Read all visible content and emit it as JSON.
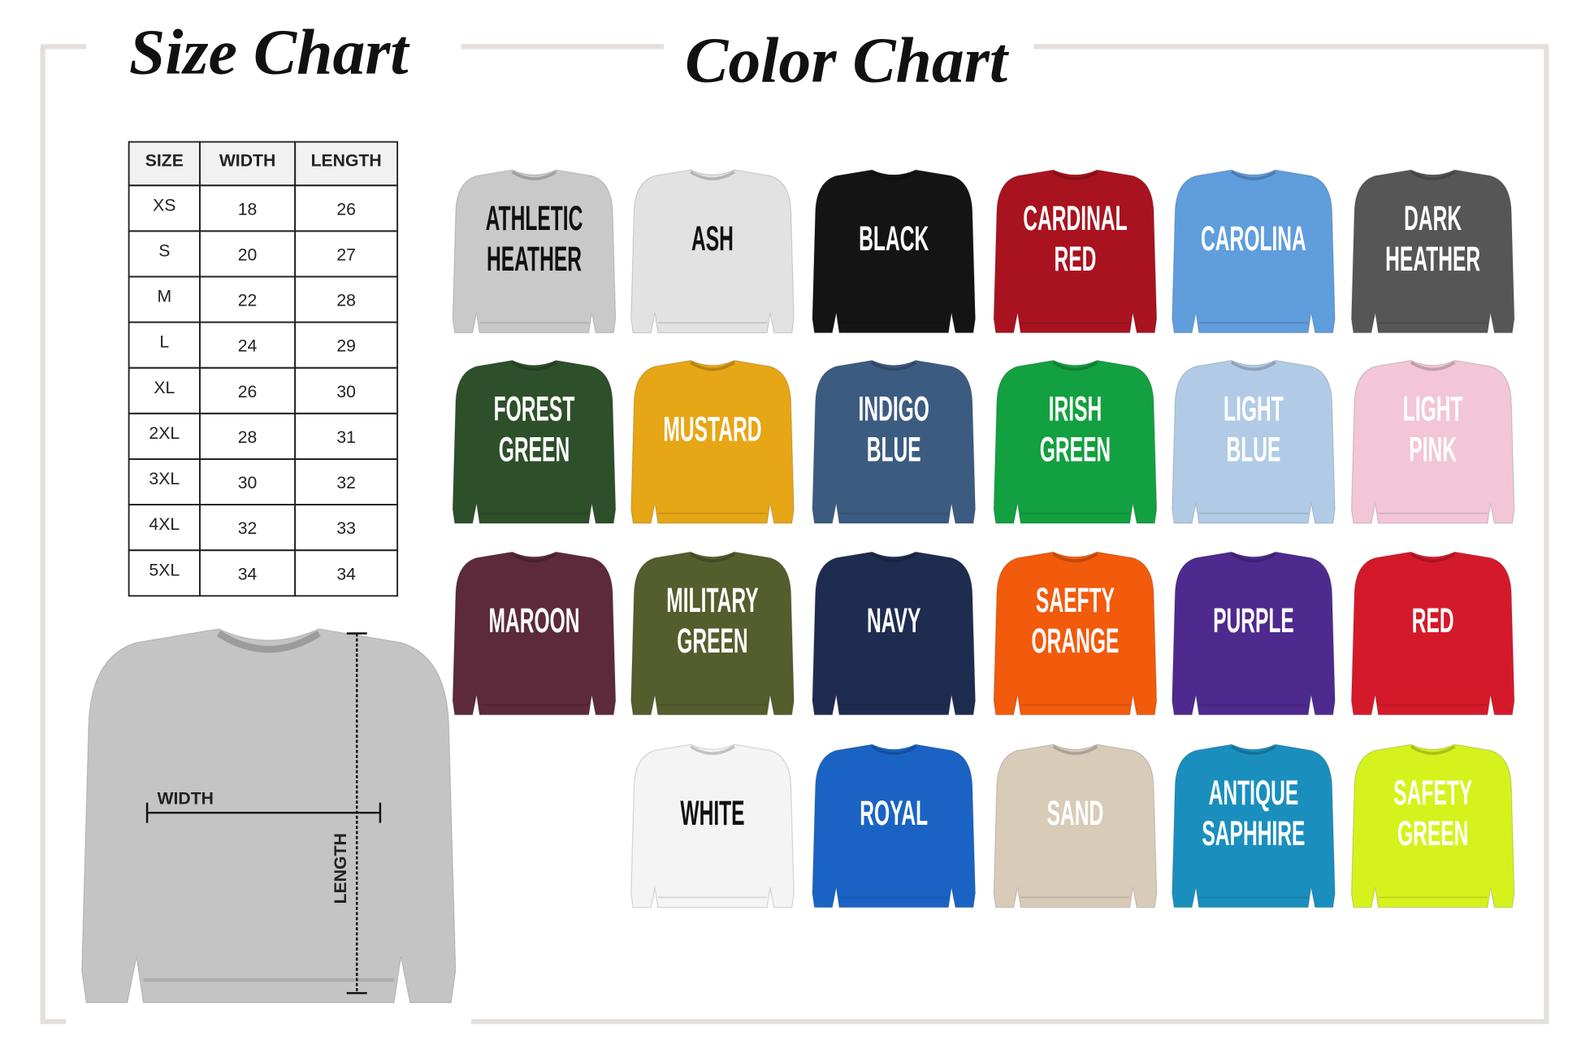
{
  "size_chart": {
    "title": "Size Chart",
    "table": {
      "header": [
        "SIZE",
        "WIDTH",
        "LENGTH"
      ],
      "rows": [
        [
          "XS",
          "18",
          "26"
        ],
        [
          "S",
          "20",
          "27"
        ],
        [
          "M",
          "22",
          "28"
        ],
        [
          "L",
          "24",
          "29"
        ],
        [
          "XL",
          "26",
          "30"
        ],
        [
          "2XL",
          "28",
          "31"
        ],
        [
          "3XL",
          "30",
          "32"
        ],
        [
          "4XL",
          "32",
          "33"
        ],
        [
          "5XL",
          "34",
          "34"
        ]
      ]
    },
    "diagram": {
      "width_label": "WIDTH",
      "length_label": "LENGTH"
    }
  },
  "color_chart": {
    "title": "Color Chart",
    "rows": [
      [
        {
          "lines": [
            "ATHLETIC",
            "HEATHER"
          ],
          "color": "#c9c9c9",
          "text_color": "#111111"
        },
        {
          "lines": [
            "ASH"
          ],
          "color": "#e2e2e2",
          "text_color": "#111111"
        },
        {
          "lines": [
            "BLACK"
          ],
          "color": "#141414",
          "text_color": "#ffffff"
        },
        {
          "lines": [
            "CARDINAL",
            "RED"
          ],
          "color": "#a8131f",
          "text_color": "#ffffff"
        },
        {
          "lines": [
            "CAROLINA"
          ],
          "color": "#5f9ddc",
          "text_color": "#ffffff"
        },
        {
          "lines": [
            "DARK",
            "HEATHER"
          ],
          "color": "#565656",
          "text_color": "#ffffff"
        }
      ],
      [
        {
          "lines": [
            "FOREST",
            "GREEN"
          ],
          "color": "#2d4f2a",
          "text_color": "#ffffff"
        },
        {
          "lines": [
            "MUSTARD"
          ],
          "color": "#e6a616",
          "text_color": "#ffffff"
        },
        {
          "lines": [
            "INDIGO",
            "BLUE"
          ],
          "color": "#3c5b80",
          "text_color": "#ffffff"
        },
        {
          "lines": [
            "IRISH",
            "GREEN"
          ],
          "color": "#13a040",
          "text_color": "#ffffff"
        },
        {
          "lines": [
            "LIGHT",
            "BLUE"
          ],
          "color": "#b1cbe6",
          "text_color": "#ffffff"
        },
        {
          "lines": [
            "LIGHT",
            "PINK"
          ],
          "color": "#f2c6d6",
          "text_color": "#ffffff"
        }
      ],
      [
        {
          "lines": [
            "MAROON"
          ],
          "color": "#5c2a3a",
          "text_color": "#ffffff"
        },
        {
          "lines": [
            "MILITARY",
            "GREEN"
          ],
          "color": "#545d2c",
          "text_color": "#ffffff"
        },
        {
          "lines": [
            "NAVY"
          ],
          "color": "#1e2c4f",
          "text_color": "#ffffff"
        },
        {
          "lines": [
            "SAEFTY",
            "ORANGE"
          ],
          "color": "#f25a0c",
          "text_color": "#ffffff"
        },
        {
          "lines": [
            "PURPLE"
          ],
          "color": "#4e2a8e",
          "text_color": "#ffffff"
        },
        {
          "lines": [
            "RED"
          ],
          "color": "#d41a2a",
          "text_color": "#ffffff"
        }
      ],
      [
        {
          "lines": [
            "WHITE"
          ],
          "color": "#f4f4f4",
          "text_color": "#111111"
        },
        {
          "lines": [
            "ROYAL"
          ],
          "color": "#1a63c4",
          "text_color": "#ffffff"
        },
        {
          "lines": [
            "SAND"
          ],
          "color": "#d8cbb8",
          "text_color": "#ffffff"
        },
        {
          "lines": [
            "ANTIQUE",
            "SAPHHIRE"
          ],
          "color": "#1a8fbd",
          "text_color": "#ffffff"
        },
        {
          "lines": [
            "SAFETY",
            "GREEN"
          ],
          "color": "#d6f21c",
          "text_color": "#ffffff"
        }
      ]
    ]
  }
}
